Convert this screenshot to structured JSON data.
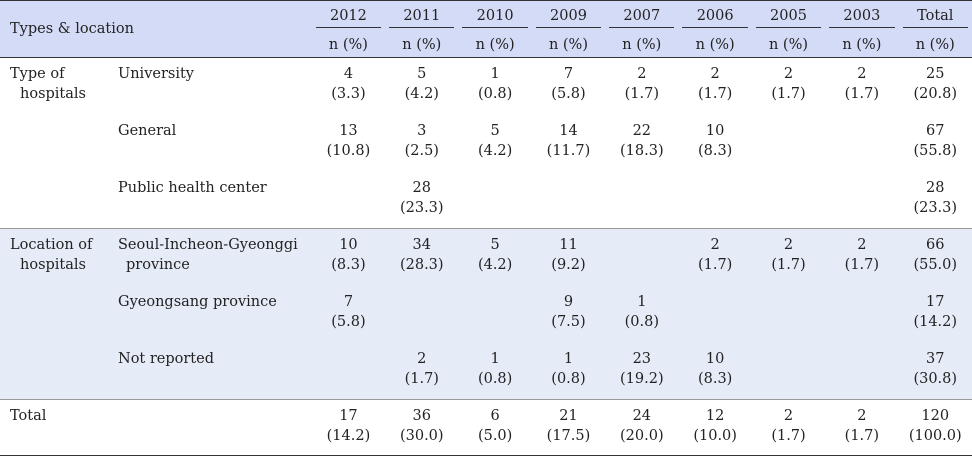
{
  "header": {
    "label": "Types & location",
    "years": [
      "2012",
      "2011",
      "2010",
      "2009",
      "2007",
      "2006",
      "2005",
      "2003",
      "Total"
    ],
    "unit": "n (%)"
  },
  "groups": [
    {
      "label_lines": [
        "Type of",
        "hospitals"
      ],
      "rows": [
        {
          "label_lines": [
            "University"
          ],
          "cells": [
            [
              "4",
              "(3.3)"
            ],
            [
              "5",
              "(4.2)"
            ],
            [
              "1",
              "(0.8)"
            ],
            [
              "7",
              "(5.8)"
            ],
            [
              "2",
              "(1.7)"
            ],
            [
              "2",
              "(1.7)"
            ],
            [
              "2",
              "(1.7)"
            ],
            [
              "2",
              "(1.7)"
            ],
            [
              "25",
              "(20.8)"
            ]
          ]
        },
        {
          "label_lines": [
            "General"
          ],
          "cells": [
            [
              "13",
              "(10.8)"
            ],
            [
              "3",
              "(2.5)"
            ],
            [
              "5",
              "(4.2)"
            ],
            [
              "14",
              "(11.7)"
            ],
            [
              "22",
              "(18.3)"
            ],
            [
              "10",
              "(8.3)"
            ],
            [
              "",
              ""
            ],
            [
              "",
              ""
            ],
            [
              "67",
              "(55.8)"
            ]
          ]
        },
        {
          "label_lines": [
            "Public health center"
          ],
          "cells": [
            [
              "",
              ""
            ],
            [
              "28",
              "(23.3)"
            ],
            [
              "",
              ""
            ],
            [
              "",
              ""
            ],
            [
              "",
              ""
            ],
            [
              "",
              ""
            ],
            [
              "",
              ""
            ],
            [
              "",
              ""
            ],
            [
              "28",
              "(23.3)"
            ]
          ]
        }
      ]
    },
    {
      "label_lines": [
        "Location of",
        "hospitals"
      ],
      "rows": [
        {
          "label_lines": [
            "Seoul-Incheon-Gyeonggi",
            "province"
          ],
          "cells": [
            [
              "10",
              "(8.3)"
            ],
            [
              "34",
              "(28.3)"
            ],
            [
              "5",
              "(4.2)"
            ],
            [
              "11",
              "(9.2)"
            ],
            [
              "",
              ""
            ],
            [
              "2",
              "(1.7)"
            ],
            [
              "2",
              "(1.7)"
            ],
            [
              "2",
              "(1.7)"
            ],
            [
              "66",
              "(55.0)"
            ]
          ]
        },
        {
          "label_lines": [
            "Gyeongsang province"
          ],
          "cells": [
            [
              "7",
              "(5.8)"
            ],
            [
              "",
              ""
            ],
            [
              "",
              ""
            ],
            [
              "9",
              "(7.5)"
            ],
            [
              "1",
              "(0.8)"
            ],
            [
              "",
              ""
            ],
            [
              "",
              ""
            ],
            [
              "",
              ""
            ],
            [
              "17",
              "(14.2)"
            ]
          ]
        },
        {
          "label_lines": [
            "Not reported"
          ],
          "cells": [
            [
              "",
              ""
            ],
            [
              "2",
              "(1.7)"
            ],
            [
              "1",
              "(0.8)"
            ],
            [
              "1",
              "(0.8)"
            ],
            [
              "23",
              "(19.2)"
            ],
            [
              "10",
              "(8.3)"
            ],
            [
              "",
              ""
            ],
            [
              "",
              ""
            ],
            [
              "37",
              "(30.8)"
            ]
          ]
        }
      ]
    }
  ],
  "total": {
    "label": "Total",
    "cells": [
      [
        "17",
        "(14.2)"
      ],
      [
        "36",
        "(30.0)"
      ],
      [
        "6",
        "(5.0)"
      ],
      [
        "21",
        "(17.5)"
      ],
      [
        "24",
        "(20.0)"
      ],
      [
        "12",
        "(10.0)"
      ],
      [
        "2",
        "(1.7)"
      ],
      [
        "2",
        "(1.7)"
      ],
      [
        "120",
        "(100.0)"
      ]
    ]
  }
}
